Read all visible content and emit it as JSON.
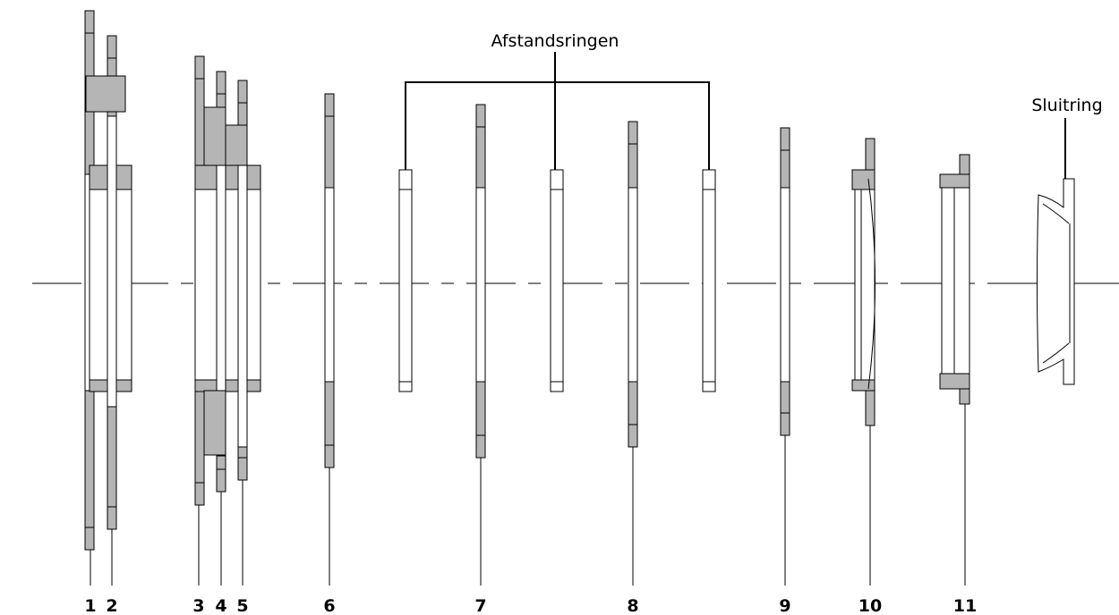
{
  "callouts": {
    "spacers": "Afstandsringen",
    "lock_ring": "Sluitring"
  },
  "parts": [
    "1",
    "2",
    "3",
    "4",
    "5",
    "6",
    "7",
    "8",
    "9",
    "10",
    "11"
  ]
}
